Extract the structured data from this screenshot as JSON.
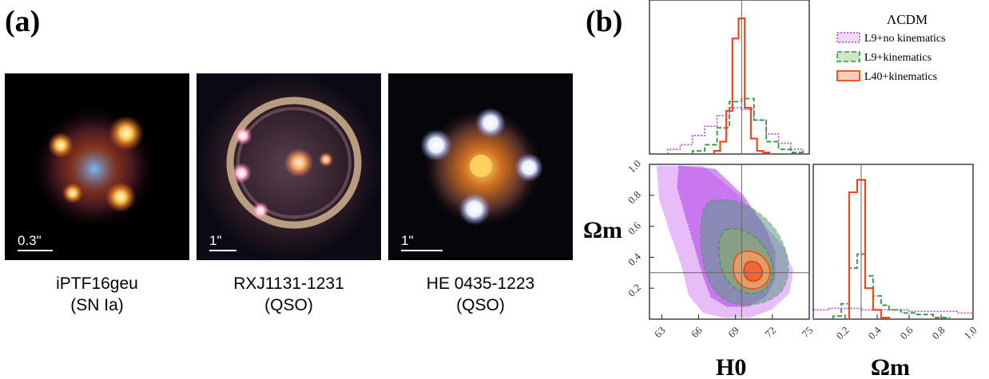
{
  "panel_a": {
    "label": "(a)",
    "images": [
      {
        "scale": "0.3\"",
        "name": "iPTF16geu",
        "type": "(SN Ia)"
      },
      {
        "scale": "1\"",
        "name": "RXJ1131-1231",
        "type": "(QSO)"
      },
      {
        "scale": "1\"",
        "name": "HE 0435-1223",
        "type": "(QSO)"
      }
    ]
  },
  "panel_b": {
    "label": "(b)",
    "legend": {
      "title": "ΛCDM",
      "entries": [
        "L9+no kinematics",
        "L9+kinematics",
        "L40+kinematics"
      ]
    },
    "colors": {
      "L9_no_kin": "#b040f0",
      "L9_kin": "#2a9a3a",
      "L40_kin": "#f04818"
    }
  },
  "chart_data": [
    {
      "type": "histogram",
      "panel": "H0 marginal",
      "xlim": [
        62,
        75
      ],
      "truth": 69.5,
      "series": [
        {
          "name": "L9+no kinematics",
          "x": [
            64,
            65,
            66,
            67,
            68,
            69,
            70,
            71,
            72,
            73,
            74
          ],
          "y": [
            0.03,
            0.06,
            0.12,
            0.18,
            0.25,
            0.3,
            0.29,
            0.22,
            0.13,
            0.07,
            0.03
          ]
        },
        {
          "name": "L9+kinematics",
          "x": [
            66,
            67,
            68,
            69,
            70,
            71,
            72,
            73,
            74
          ],
          "y": [
            0.02,
            0.06,
            0.17,
            0.34,
            0.36,
            0.22,
            0.08,
            0.03,
            0.01
          ]
        },
        {
          "name": "L40+kinematics",
          "x": [
            67.5,
            68,
            68.5,
            69,
            69.5,
            70,
            70.5,
            71,
            71.5
          ],
          "y": [
            0.02,
            0.08,
            0.28,
            0.75,
            0.88,
            0.3,
            0.1,
            0.02,
            0.01
          ]
        }
      ]
    },
    {
      "type": "contour",
      "panel": "H0 vs Omega_m",
      "xlabel": "H0",
      "ylabel": "Ωm",
      "xticks": [
        63,
        66,
        69,
        72,
        75
      ],
      "yticks": [
        0.2,
        0.4,
        0.6,
        0.8,
        1.0
      ],
      "xlim": [
        62,
        75
      ],
      "ylim": [
        0.0,
        1.0
      ],
      "truth": {
        "H0": 69.5,
        "Om": 0.3
      }
    },
    {
      "type": "histogram",
      "panel": "Omega_m marginal",
      "xlabel": "Ωm",
      "xticks": [
        0.2,
        0.4,
        0.6,
        0.8,
        1.0
      ],
      "xlim": [
        0.0,
        1.0
      ],
      "truth": 0.3,
      "series": [
        {
          "name": "L9+no kinematics",
          "x": [
            0.05,
            0.15,
            0.25,
            0.35,
            0.45,
            0.55,
            0.65,
            0.75,
            0.85,
            0.95
          ],
          "y": [
            0.06,
            0.07,
            0.07,
            0.06,
            0.06,
            0.06,
            0.05,
            0.05,
            0.05,
            0.04
          ]
        },
        {
          "name": "L9+kinematics",
          "x": [
            0.15,
            0.2,
            0.25,
            0.3,
            0.35,
            0.4,
            0.45,
            0.5,
            0.6,
            0.7,
            0.8
          ],
          "y": [
            0.02,
            0.1,
            0.33,
            0.42,
            0.28,
            0.15,
            0.09,
            0.06,
            0.04,
            0.03,
            0.01
          ]
        },
        {
          "name": "L40+kinematics",
          "x": [
            0.25,
            0.3,
            0.35,
            0.4,
            0.45
          ],
          "y": [
            0.82,
            0.9,
            0.2,
            0.06,
            0.01
          ]
        }
      ]
    }
  ]
}
